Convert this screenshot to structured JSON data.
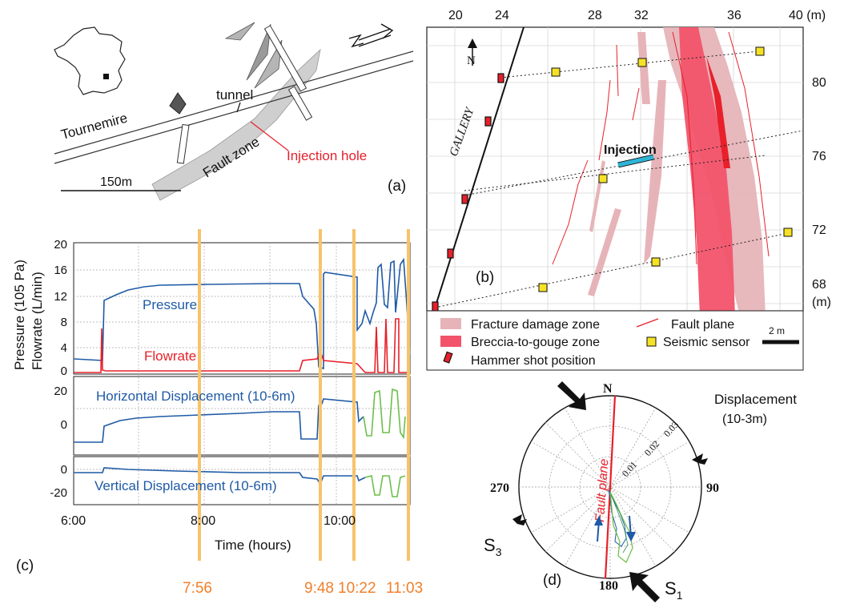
{
  "panel_a": {
    "panel_label": "(a)",
    "tournemire_label": "Tournemire",
    "tunnel_label": "tunnel",
    "fault_zone_label": "Fault zone",
    "injection_hole_label": "Injection hole",
    "scale_label": "150m",
    "colors": {
      "injection": "#e8202a",
      "fault_zone": "#cfcfcf"
    }
  },
  "panel_b": {
    "panel_label": "(b)",
    "north_label": "N",
    "gallery_label": "GALLERY",
    "injection_label": "Injection",
    "top_unit": "40 (m)",
    "right_unit": "(m)",
    "x_ticks": [
      "20",
      "24",
      "28",
      "32",
      "36"
    ],
    "y_ticks": [
      "80",
      "76",
      "72",
      "68"
    ],
    "scale_label": "2 m",
    "legend": {
      "fracture_damage": "Fracture damage zone",
      "fault_plane": "Fault plane",
      "breccia": "Breccia-to-gouge zone",
      "seismic_sensor": "Seismic sensor",
      "hammer_shot": "Hammer shot position"
    },
    "colors": {
      "damage": "#e6b4b8",
      "breccia": "#f2536a",
      "sensor": "#f6e225",
      "fault": "#e8202a",
      "injection": "#2fb4d6"
    }
  },
  "panel_c": {
    "panel_label": "(c)",
    "y_axis_line1": "Pressure (105 Pa)",
    "y_axis_line2": "Flowrate (L/min)",
    "pressure_label": "Pressure",
    "flowrate_label": "Flowrate",
    "horizontal_label": "Horizontal Displacement (10-6m)",
    "vertical_label": "Vertical Displacement (10-6m)",
    "x_axis_label": "Time (hours)",
    "x_ticks": [
      "6:00",
      "8:00",
      "10:00"
    ],
    "top_y_ticks": [
      "20",
      "16",
      "12",
      "8",
      "4",
      "0"
    ],
    "mid_y_ticks": [
      "20",
      "0"
    ],
    "bottom_y_ticks": [
      "0",
      "-20"
    ],
    "event_times": [
      "7:56",
      "9:48",
      "10:22",
      "11:03"
    ],
    "colors": {
      "pressure": "#1f5aa6",
      "flowrate": "#e8202a",
      "green": "#6cbf4a",
      "event": "#f7c36b",
      "event_text": "#f07f2a"
    }
  },
  "panel_d": {
    "panel_label": "(d)",
    "north_label": "N",
    "label_90": "90",
    "label_180": "180",
    "label_270": "270",
    "displacement_label": "Displacement",
    "displacement_unit": "(10-3m)",
    "ring_labels": [
      "0.01",
      "0.02",
      "0.03"
    ],
    "fault_plane_label": "Fault plane",
    "s3_label": "S3",
    "s1_label": "S1"
  }
}
